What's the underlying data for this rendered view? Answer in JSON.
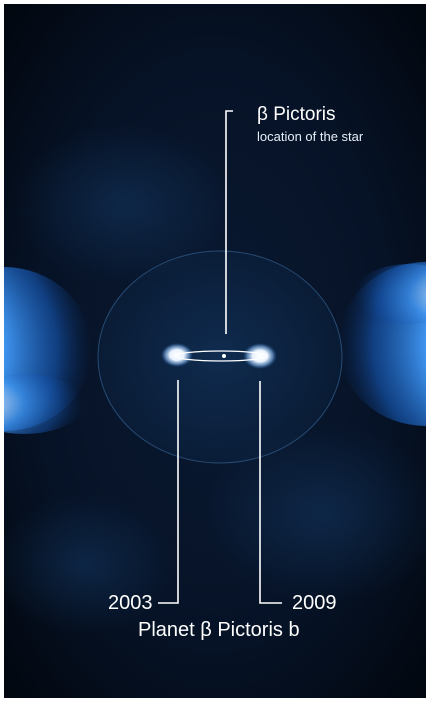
{
  "image": {
    "subject": "β Pictoris",
    "colors": {
      "background": "#040b1a",
      "disc_glow": "#2a7de0",
      "disc_core": "#ffffff",
      "inner_region": "#0e2a4c",
      "lines": "#ffffff"
    }
  },
  "labels": {
    "star_name": "β Pictoris",
    "star_description": "location of the star",
    "year_left": "2003",
    "year_right": "2009",
    "planet_name": "Planet β Pictoris b"
  }
}
